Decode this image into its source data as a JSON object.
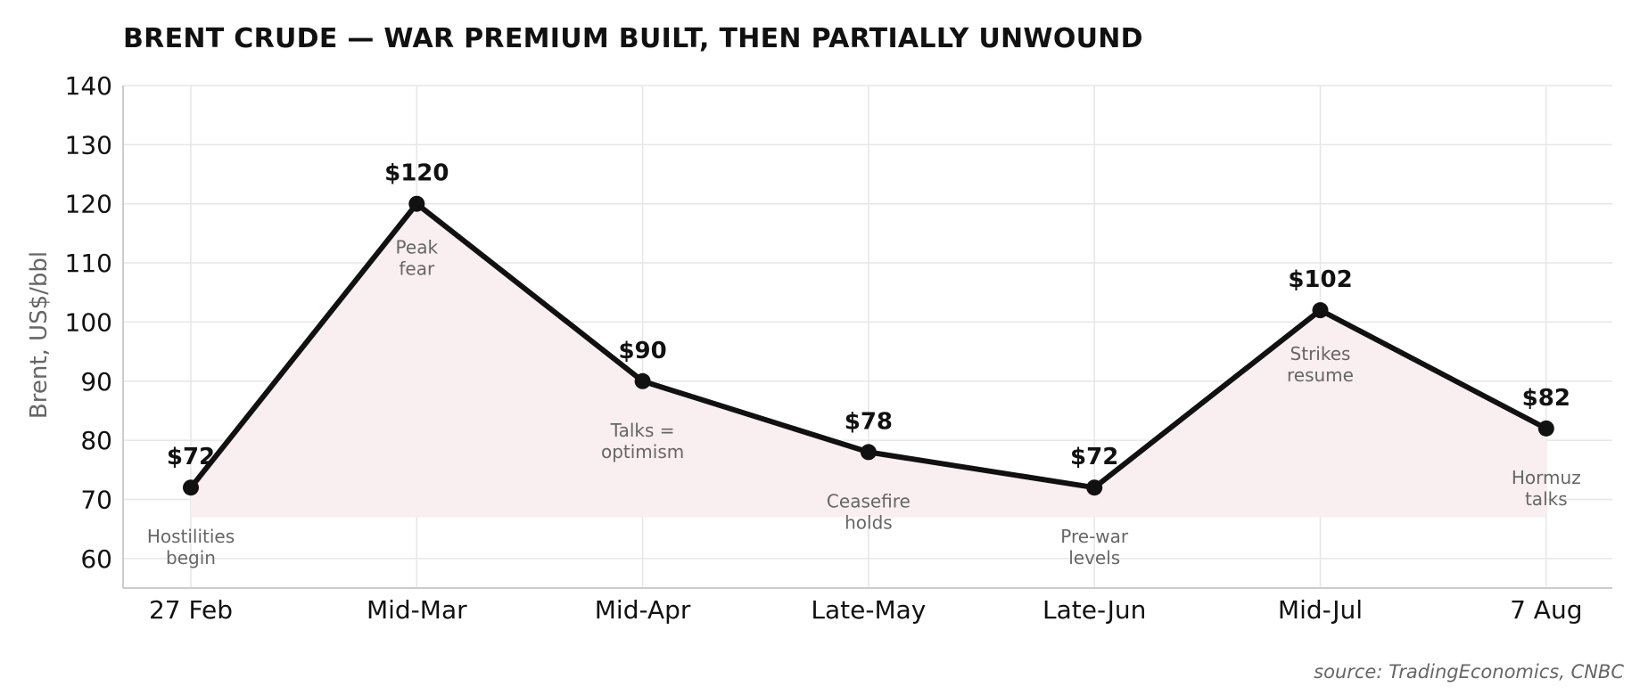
{
  "chart_data": {
    "type": "line",
    "title": "BRENT CRUDE — WAR PREMIUM BUILT, THEN PARTIALLY UNWOUND",
    "xlabel": "",
    "ylabel": "Brent, US$/bbl",
    "categories": [
      "27 Feb",
      "Mid-Mar",
      "Mid-Apr",
      "Late-May",
      "Late-Jun",
      "Mid-Jul",
      "7 Aug"
    ],
    "values": [
      72,
      120,
      90,
      78,
      72,
      102,
      82
    ],
    "value_labels": [
      "$72",
      "$120",
      "$90",
      "$78",
      "$72",
      "$102",
      "$82"
    ],
    "annotations": [
      [
        "Hostilities",
        "begin"
      ],
      [
        "Peak",
        "fear"
      ],
      [
        "Talks =",
        "optimism"
      ],
      [
        "Ceasefire",
        "holds"
      ],
      [
        "Pre-war",
        "levels"
      ],
      [
        "Strikes",
        "resume"
      ],
      [
        "Hormuz",
        "talks"
      ]
    ],
    "annotation_position": [
      "below",
      "below",
      "below",
      "below",
      "below",
      "below",
      "below"
    ],
    "ylim": [
      55,
      140
    ],
    "yticks": [
      60,
      70,
      80,
      90,
      100,
      110,
      120,
      130,
      140
    ],
    "fill_baseline": 67,
    "grid": true,
    "legend": "none"
  },
  "source": "source: TradingEconomics, CNBC",
  "colors": {
    "line": "#111111",
    "fill": "#f9eef0",
    "grid": "#e6e6e6",
    "axis": "#cccccc",
    "annotation": "#666666",
    "text": "#111111"
  }
}
